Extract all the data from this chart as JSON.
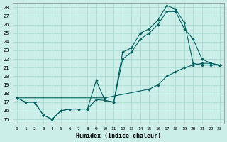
{
  "xlabel": "Humidex (Indice chaleur)",
  "background_color": "#cceee8",
  "line_color": "#006060",
  "grid_color": "#b0ddd8",
  "xlim": [
    -0.5,
    23.5
  ],
  "ylim": [
    14.5,
    28.5
  ],
  "xticks": [
    0,
    1,
    2,
    3,
    4,
    5,
    6,
    7,
    8,
    9,
    10,
    11,
    12,
    13,
    14,
    15,
    16,
    17,
    18,
    19,
    20,
    21,
    22,
    23
  ],
  "yticks": [
    15,
    16,
    17,
    18,
    19,
    20,
    21,
    22,
    23,
    24,
    25,
    26,
    27,
    28
  ],
  "line1_x": [
    0,
    1,
    2,
    3,
    4,
    5,
    6,
    7,
    8,
    9,
    10,
    11,
    12,
    13,
    14,
    15,
    16,
    17,
    18,
    19,
    20,
    21,
    22,
    23
  ],
  "line1_y": [
    17.5,
    17.0,
    17.0,
    15.5,
    15.0,
    16.0,
    16.2,
    16.2,
    16.2,
    19.5,
    17.2,
    17.0,
    22.8,
    23.3,
    25.0,
    25.5,
    26.5,
    28.2,
    27.8,
    26.2,
    21.5,
    21.3,
    21.3,
    21.3
  ],
  "line2_x": [
    0,
    1,
    2,
    3,
    4,
    5,
    6,
    7,
    8,
    9,
    10,
    11,
    12,
    13,
    14,
    15,
    16,
    17,
    18,
    19,
    20,
    21,
    22,
    23
  ],
  "line2_y": [
    17.5,
    17.0,
    17.0,
    15.5,
    15.0,
    16.0,
    16.2,
    16.2,
    16.2,
    17.3,
    17.2,
    17.0,
    22.0,
    22.8,
    24.3,
    25.0,
    26.0,
    27.5,
    27.5,
    25.5,
    24.3,
    22.0,
    21.5,
    21.3
  ],
  "line3_x": [
    0,
    10,
    15,
    16,
    17,
    18,
    19,
    20,
    21,
    22,
    23
  ],
  "line3_y": [
    17.5,
    17.5,
    18.5,
    19.0,
    20.0,
    20.5,
    21.0,
    21.3,
    21.5,
    21.5,
    21.3
  ]
}
